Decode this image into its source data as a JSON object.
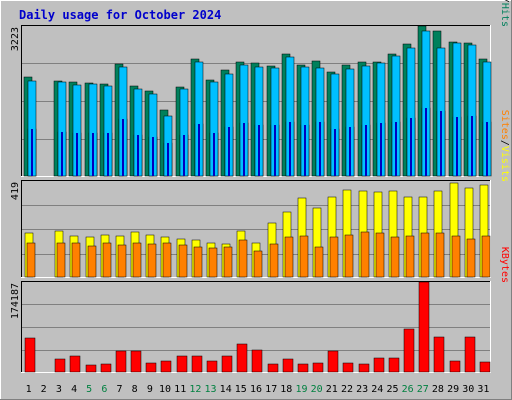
{
  "title": "Daily usage for October 2024",
  "colors": {
    "background": "#c0c0c0",
    "title": "#0000cc",
    "hits": "#00805c",
    "files": "#0000c0",
    "pages": "#00c0ff",
    "visits": "#ffff00",
    "sites": "#ff8000",
    "kbytes": "#ff0000",
    "weekend_label": "#008040",
    "weekday_label": "#000000"
  },
  "chart_data": [
    {
      "type": "bar",
      "panel": "hits-files-pages",
      "max_label": "3223",
      "ylim": [
        0,
        3223
      ],
      "legend": [
        {
          "label": "Pages",
          "color": "#00c0ff"
        },
        {
          "label": "/",
          "color": "#000000"
        },
        {
          "label": "Files",
          "color": "#0000c0"
        },
        {
          "label": "/",
          "color": "#000000"
        },
        {
          "label": "Hits",
          "color": "#00805c"
        }
      ],
      "categories": [
        "1",
        "2",
        "3",
        "4",
        "5",
        "6",
        "7",
        "8",
        "9",
        "10",
        "11",
        "12",
        "13",
        "14",
        "15",
        "16",
        "17",
        "18",
        "19",
        "20",
        "21",
        "22",
        "23",
        "24",
        "25",
        "26",
        "27",
        "28",
        "29",
        "30",
        "31"
      ],
      "series": [
        {
          "name": "Hits",
          "values": [
            2120,
            0,
            2050,
            2020,
            2000,
            1980,
            2410,
            1940,
            1820,
            1420,
            1920,
            2520,
            2060,
            2280,
            2460,
            2420,
            2370,
            2620,
            2390,
            2480,
            2240,
            2380,
            2460,
            2460,
            2630,
            2830,
            3223,
            3120,
            2880,
            2850,
            2520
          ]
        },
        {
          "name": "Files",
          "values": [
            1000,
            0,
            950,
            930,
            930,
            920,
            1220,
            880,
            830,
            700,
            880,
            1120,
            930,
            1050,
            1130,
            1100,
            1100,
            1170,
            1090,
            1150,
            1020,
            1060,
            1100,
            1130,
            1170,
            1240,
            1460,
            1400,
            1270,
            1280,
            1150
          ]
        },
        {
          "name": "Pages",
          "values": [
            2040,
            0,
            2010,
            1950,
            1970,
            1940,
            2350,
            1880,
            1760,
            1280,
            1860,
            2450,
            2020,
            2200,
            2380,
            2350,
            2330,
            2560,
            2340,
            2330,
            2190,
            2300,
            2370,
            2420,
            2580,
            2760,
            3120,
            2740,
            2850,
            2820,
            2460
          ]
        }
      ]
    },
    {
      "type": "bar",
      "panel": "visits-sites",
      "max_label": "419",
      "ylim": [
        0,
        419
      ],
      "legend": [
        {
          "label": "Sites",
          "color": "#ff8000"
        },
        {
          "label": "/",
          "color": "#000000"
        },
        {
          "label": "Visits",
          "color": "#ffff00"
        }
      ],
      "categories": [
        "1",
        "2",
        "3",
        "4",
        "5",
        "6",
        "7",
        "8",
        "9",
        "10",
        "11",
        "12",
        "13",
        "14",
        "15",
        "16",
        "17",
        "18",
        "19",
        "20",
        "21",
        "22",
        "23",
        "24",
        "25",
        "26",
        "27",
        "28",
        "29",
        "30",
        "31"
      ],
      "series": [
        {
          "name": "Visits",
          "values": [
            190,
            0,
            200,
            180,
            175,
            185,
            180,
            195,
            185,
            175,
            165,
            160,
            150,
            145,
            200,
            150,
            235,
            285,
            345,
            300,
            350,
            380,
            375,
            370,
            375,
            350,
            350,
            375,
            410,
            390,
            400
          ]
        },
        {
          "name": "Sites",
          "values": [
            150,
            0,
            150,
            150,
            135,
            150,
            140,
            150,
            145,
            150,
            140,
            130,
            125,
            130,
            160,
            115,
            145,
            175,
            180,
            130,
            175,
            185,
            195,
            190,
            175,
            180,
            190,
            190,
            180,
            165,
            180
          ]
        }
      ]
    },
    {
      "type": "bar",
      "panel": "kbytes",
      "max_label": "174187",
      "ylim": [
        0,
        174187
      ],
      "legend": [
        {
          "label": "KBytes",
          "color": "#ff0000"
        }
      ],
      "categories": [
        "1",
        "2",
        "3",
        "4",
        "5",
        "6",
        "7",
        "8",
        "9",
        "10",
        "11",
        "12",
        "13",
        "14",
        "15",
        "16",
        "17",
        "18",
        "19",
        "20",
        "21",
        "22",
        "23",
        "24",
        "25",
        "26",
        "27",
        "28",
        "29",
        "30",
        "31"
      ],
      "series": [
        {
          "name": "KBytes",
          "values": [
            65000,
            0,
            25000,
            30000,
            13000,
            16000,
            40000,
            40000,
            18000,
            21000,
            30000,
            30000,
            21000,
            31000,
            54000,
            42000,
            15000,
            25000,
            16000,
            18000,
            40000,
            18000,
            16000,
            27000,
            27000,
            84000,
            174187,
            67000,
            21000,
            67000,
            20000
          ]
        }
      ]
    }
  ],
  "weekend_days": [
    "5",
    "6",
    "12",
    "13",
    "19",
    "20",
    "26",
    "27"
  ]
}
